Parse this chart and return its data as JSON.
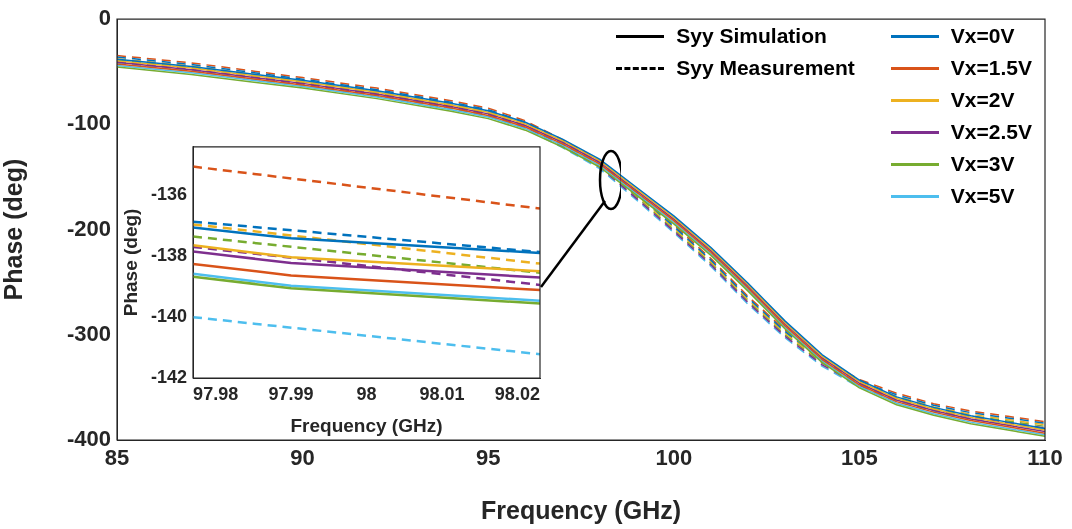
{
  "chart_data": [
    {
      "type": "line",
      "xlabel": "Frequency (GHz)",
      "ylabel": "Phase (deg)",
      "xlim": [
        85,
        110
      ],
      "xticks": [
        85,
        90,
        95,
        100,
        105,
        110
      ],
      "ylim": [
        -400,
        0
      ],
      "yticks": [
        -400,
        -300,
        -200,
        -100,
        0
      ],
      "legend": "top right",
      "x": [
        85,
        87,
        90,
        92,
        94,
        95,
        96,
        97,
        98,
        99,
        100,
        101,
        102,
        103,
        104,
        105,
        106,
        107,
        108,
        109,
        110
      ],
      "series": [
        {
          "name": "Syy Simulation",
          "color": "#000000",
          "line_style": "solid",
          "values": [
            null,
            null,
            null,
            null,
            null,
            null,
            null,
            null,
            null,
            null,
            null,
            null,
            null,
            null,
            null,
            null,
            null,
            null,
            null,
            null,
            null
          ]
        },
        {
          "name": "Syy Measurement",
          "color": "#000000",
          "line_style": "dashed",
          "values": [
            null,
            null,
            null,
            null,
            null,
            null,
            null,
            null,
            null,
            null,
            null,
            null,
            null,
            null,
            null,
            null,
            null,
            null,
            null,
            null,
            null
          ]
        },
        {
          "name": "Vx=0V",
          "color": "#0072bd",
          "line_style": "solid",
          "values": [
            -38,
            -45,
            -58,
            -68,
            -80,
            -87,
            -98,
            -114,
            -133,
            -160,
            -187,
            -217,
            -251,
            -287,
            -319,
            -343,
            -359,
            -369,
            -377,
            -383,
            -389
          ]
        },
        {
          "name": "Vx=1.5V",
          "color": "#d95319",
          "line_style": "solid",
          "values": [
            -42.5,
            -49.5,
            -62.5,
            -72.5,
            -84.5,
            -91.5,
            -102.5,
            -118.5,
            -137.5,
            -164.5,
            -191.5,
            -221.5,
            -255.5,
            -291.5,
            -323.5,
            -347.5,
            -363.5,
            -373.5,
            -381.5,
            -387.5,
            -393.5
          ]
        },
        {
          "name": "Vx=2V",
          "color": "#edb120",
          "line_style": "solid",
          "values": [
            -39.5,
            -46.5,
            -59.5,
            -69.5,
            -81.5,
            -88.5,
            -99.5,
            -115.5,
            -134.5,
            -161.5,
            -188.5,
            -218.5,
            -252.5,
            -288.5,
            -320.5,
            -344.5,
            -360.5,
            -370.5,
            -378.5,
            -384.5,
            -390.5
          ]
        },
        {
          "name": "Vx=2.5V",
          "color": "#7e2f8e",
          "line_style": "solid",
          "values": [
            -41,
            -48,
            -61,
            -71,
            -83,
            -90,
            -101,
            -117,
            -136,
            -163,
            -190,
            -220,
            -254,
            -290,
            -322,
            -346,
            -362,
            -372,
            -380,
            -386,
            -392
          ]
        },
        {
          "name": "Vx=3V",
          "color": "#77ac30",
          "line_style": "solid",
          "values": [
            -45.5,
            -52.5,
            -65.5,
            -75.5,
            -87.5,
            -94.5,
            -105.5,
            -121.5,
            -140.5,
            -167.5,
            -194.5,
            -224.5,
            -258.5,
            -294.5,
            -326.5,
            -350.5,
            -366.5,
            -376.5,
            -384.5,
            -390.5,
            -396.5
          ]
        },
        {
          "name": "Vx=5V",
          "color": "#4dbeee",
          "line_style": "solid",
          "values": [
            -44,
            -51,
            -64,
            -74,
            -86,
            -93,
            -104,
            -120,
            -139,
            -166,
            -193,
            -223,
            -257,
            -293,
            -325,
            -349,
            -365,
            -375,
            -383,
            -389,
            -395
          ]
        },
        {
          "color": "#0072bd",
          "line_style": "dashed",
          "values": [
            -36,
            -43,
            -57,
            -67,
            -79,
            -86,
            -98,
            -116,
            -136,
            -166,
            -197,
            -229,
            -265,
            -297,
            -324,
            -344,
            -357,
            -367,
            -374,
            -379,
            -384
          ]
        },
        {
          "color": "#d95319",
          "line_style": "dashed",
          "values": [
            -34.5,
            -41.5,
            -55.5,
            -65.5,
            -77.5,
            -84.5,
            -96.5,
            -114.5,
            -134.5,
            -164.5,
            -195.5,
            -227.5,
            -263.5,
            -295.5,
            -322.5,
            -342.5,
            -355.5,
            -365.5,
            -372.5,
            -377.5,
            -382.5
          ]
        },
        {
          "color": "#edb120",
          "line_style": "dashed",
          "values": [
            -37.5,
            -44.5,
            -58.5,
            -68.5,
            -80.5,
            -87.5,
            -99.5,
            -117.5,
            -137.5,
            -167.5,
            -198.5,
            -230.5,
            -266.5,
            -298.5,
            -325.5,
            -345.5,
            -358.5,
            -368.5,
            -375.5,
            -380.5,
            -385.5
          ]
        },
        {
          "color": "#7e2f8e",
          "line_style": "dashed",
          "values": [
            -40.5,
            -47.5,
            -61.5,
            -71.5,
            -83.5,
            -90.5,
            -102.5,
            -120.5,
            -140.5,
            -170.5,
            -201.5,
            -233.5,
            -269.5,
            -301.5,
            -328.5,
            -348.5,
            -361.5,
            -371.5,
            -378.5,
            -383.5,
            -388.5
          ]
        },
        {
          "color": "#77ac30",
          "line_style": "dashed",
          "values": [
            -39,
            -46,
            -60,
            -70,
            -82,
            -89,
            -101,
            -119,
            -139,
            -169,
            -200,
            -232,
            -268,
            -300,
            -327,
            -347,
            -360,
            -370,
            -377,
            -382,
            -387
          ]
        },
        {
          "color": "#4dbeee",
          "line_style": "dashed",
          "values": [
            -42,
            -49,
            -63,
            -73,
            -85,
            -92,
            -104,
            -122,
            -142,
            -172,
            -203,
            -235,
            -271,
            -303,
            -330,
            -350,
            -363,
            -373,
            -380,
            -385,
            -390
          ]
        }
      ]
    },
    {
      "type": "line",
      "xlabel": "Frequency (GHz)",
      "ylabel": "Phase (deg)",
      "xlim": [
        97.977,
        98.023
      ],
      "xticks": [
        97.98,
        97.99,
        98,
        98.01,
        98.02
      ],
      "ylim": [
        -142,
        -134.4
      ],
      "yticks": [
        -142,
        -140,
        -138,
        -136
      ],
      "series": [
        {
          "color": "#0072bd",
          "line_style": "solid",
          "x": [
            97.977,
            97.99,
            98.023
          ],
          "values": [
            -137.05,
            -137.41,
            -137.89
          ]
        },
        {
          "color": "#d95319",
          "line_style": "solid",
          "x": [
            97.977,
            97.99,
            98.023
          ],
          "values": [
            -138.25,
            -138.63,
            -139.11
          ]
        },
        {
          "color": "#edb120",
          "line_style": "solid",
          "x": [
            97.977,
            97.99,
            98.023
          ],
          "values": [
            -137.64,
            -138.03,
            -138.49
          ]
        },
        {
          "color": "#7e2f8e",
          "line_style": "solid",
          "x": [
            97.977,
            97.99,
            98.023
          ],
          "values": [
            -137.84,
            -138.22,
            -138.7
          ]
        },
        {
          "color": "#77ac30",
          "line_style": "solid",
          "x": [
            97.977,
            97.99,
            98.023
          ],
          "values": [
            -138.67,
            -139.05,
            -139.55
          ]
        },
        {
          "color": "#4dbeee",
          "line_style": "solid",
          "x": [
            97.977,
            97.99,
            98.023
          ],
          "values": [
            -138.57,
            -138.97,
            -139.46
          ]
        },
        {
          "color": "#0072bd",
          "line_style": "dashed",
          "x": [
            97.977,
            98.023
          ],
          "values": [
            -136.86,
            -137.86
          ]
        },
        {
          "color": "#d95319",
          "line_style": "dashed",
          "x": [
            97.977,
            98.023
          ],
          "values": [
            -135.05,
            -136.43
          ]
        },
        {
          "color": "#edb120",
          "line_style": "dashed",
          "x": [
            97.977,
            98.023
          ],
          "values": [
            -136.95,
            -138.24
          ]
        },
        {
          "color": "#7e2f8e",
          "line_style": "dashed",
          "x": [
            97.977,
            98.023
          ],
          "values": [
            -137.69,
            -138.94
          ]
        },
        {
          "color": "#77ac30",
          "line_style": "dashed",
          "x": [
            97.977,
            98.023
          ],
          "values": [
            -137.35,
            -138.54
          ]
        },
        {
          "color": "#4dbeee",
          "line_style": "dashed",
          "x": [
            97.977,
            98.023
          ],
          "values": [
            -140,
            -141.22
          ]
        }
      ]
    }
  ]
}
